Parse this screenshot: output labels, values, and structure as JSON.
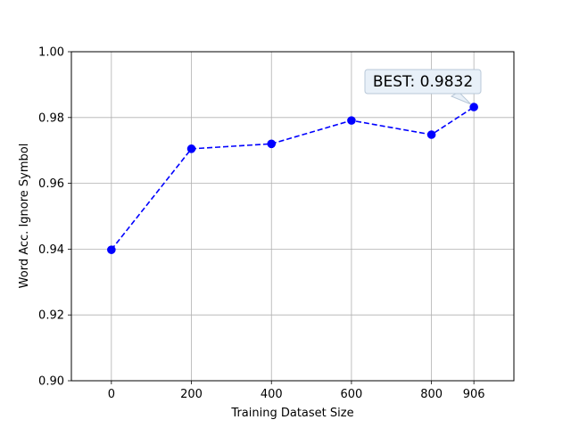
{
  "chart_data": {
    "type": "line",
    "title": "",
    "xlabel": "Training Dataset Size",
    "ylabel": "Word Acc. Ignore Symbol",
    "x": [
      0,
      200,
      400,
      600,
      800,
      906
    ],
    "x_ticks": [
      0,
      200,
      400,
      600,
      800,
      906
    ],
    "y_ticks": [
      "0.90",
      "0.92",
      "0.94",
      "0.96",
      "0.98",
      "1.00"
    ],
    "xlim": [
      -100,
      1006
    ],
    "ylim": [
      0.9,
      1.0
    ],
    "grid": true,
    "series": [
      {
        "color": "#0000ff",
        "line_style": "dashed",
        "marker": "circle",
        "values": [
          0.9398,
          0.9705,
          0.972,
          0.9791,
          0.9748,
          0.9832
        ]
      }
    ],
    "annotations": [
      {
        "text": "BEST: 0.9832",
        "x": 906,
        "y": 0.9832
      }
    ]
  },
  "colors": {
    "line": "#0000ff",
    "grid": "#b0b0b0",
    "axes": "#000000",
    "annotation_bg": "#e8f0f8",
    "annotation_border": "#b8c8d8"
  }
}
